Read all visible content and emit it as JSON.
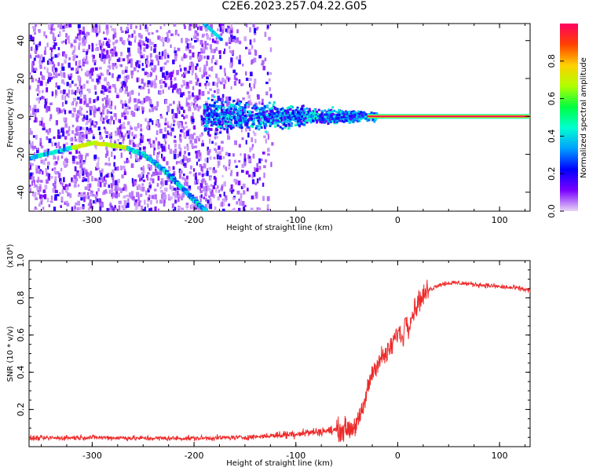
{
  "figure": {
    "title": "C2E6.2023.257.04.22.G05"
  },
  "chart_data": [
    {
      "type": "heatmap",
      "xlabel": "Height of straight line (km)",
      "ylabel": "Frequency (Hz)",
      "xlim": [
        -362,
        130
      ],
      "ylim": [
        -50,
        49
      ],
      "x_ticks": [
        -300,
        -200,
        -100,
        0,
        100
      ],
      "y_ticks": [
        -40,
        -20,
        0,
        20,
        40
      ],
      "colorbar": {
        "label": "Normalized spectral amplitude",
        "range": [
          0,
          1
        ],
        "ticks": [
          "0.0",
          "0.2",
          "0.4",
          "0.6",
          "0.8"
        ],
        "colors": [
          "#e8d6f6",
          "#7a00ff",
          "#0000ff",
          "#00a0ff",
          "#00ffd0",
          "#00ff40",
          "#b0ff00",
          "#ffd000",
          "#ff4000",
          "#ff0060"
        ]
      },
      "features": [
        {
          "name": "direct signal",
          "x_range": [
            -30,
            130
          ],
          "frequency": 0,
          "amplitude": 1.0
        },
        {
          "name": "spread near zero",
          "x_range": [
            -190,
            -20
          ],
          "frequency_spread": [
            -15,
            10
          ],
          "amplitude": 0.4
        },
        {
          "name": "arc",
          "points": [
            [
              -362,
              -22
            ],
            [
              -330,
              -18
            ],
            [
              -300,
              -14
            ],
            [
              -270,
              -16
            ],
            [
              -250,
              -20
            ],
            [
              -230,
              -28
            ],
            [
              -215,
              -36
            ],
            [
              -200,
              -44
            ],
            [
              -188,
              -50
            ]
          ]
        },
        {
          "name": "upper branch",
          "points": [
            [
              -190,
              49
            ],
            [
              -172,
              40
            ]
          ]
        }
      ]
    },
    {
      "type": "line",
      "xlabel": "Height of straight line (km)",
      "ylabel": "SNR (10 * v/v)",
      "y_multiplier": "(x10⁴)",
      "xlim": [
        -362,
        130
      ],
      "ylim": [
        0,
        1.0
      ],
      "x_ticks": [
        -300,
        -200,
        -100,
        0,
        100
      ],
      "y_ticks": [
        0.2,
        0.4,
        0.6,
        0.8,
        1.0
      ],
      "color": "#ee2a2a",
      "series": [
        {
          "x": [
            -362,
            -300,
            -250,
            -200,
            -150,
            -120,
            -100,
            -80,
            -60,
            -45,
            -38,
            -35,
            -30,
            -25,
            -20,
            -15,
            -10,
            -5,
            0,
            5,
            8,
            10,
            15,
            20,
            30,
            40,
            50,
            60,
            80,
            100,
            120,
            130
          ],
          "y": [
            0.045,
            0.05,
            0.045,
            0.045,
            0.05,
            0.06,
            0.07,
            0.08,
            0.09,
            0.1,
            0.14,
            0.18,
            0.3,
            0.4,
            0.45,
            0.48,
            0.5,
            0.55,
            0.62,
            0.58,
            0.7,
            0.65,
            0.72,
            0.78,
            0.84,
            0.87,
            0.88,
            0.88,
            0.87,
            0.86,
            0.85,
            0.84
          ]
        }
      ]
    }
  ]
}
